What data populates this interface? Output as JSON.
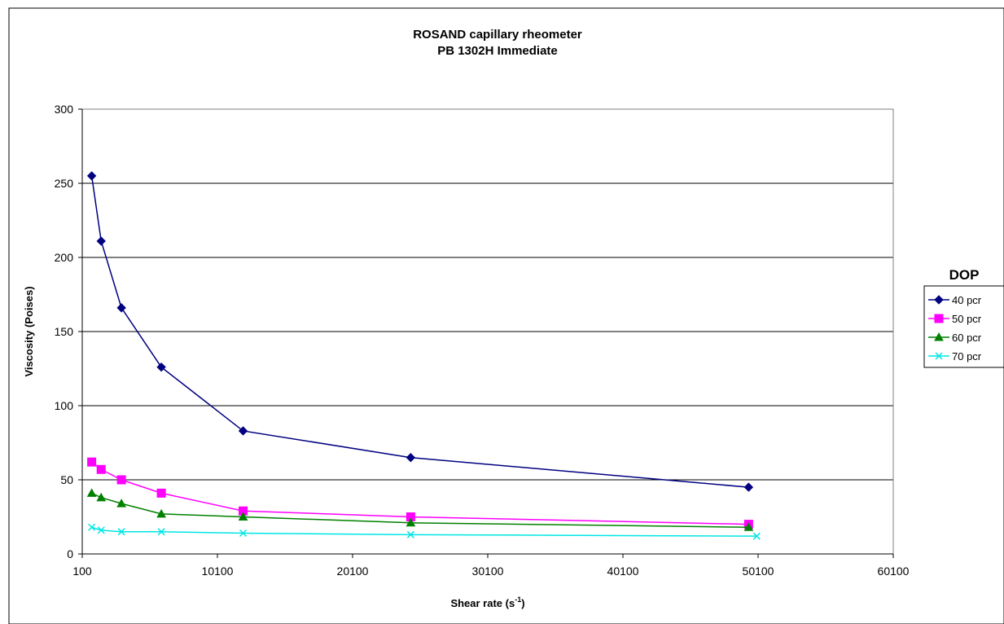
{
  "chart_data": {
    "type": "line",
    "title": "ROSAND capillary rheometer",
    "subtitle": "PB 1302H  Immediate",
    "xlabel": "Shear rate  (s",
    "xlabel_sup": "-1",
    "xlabel_suffix": ")",
    "ylabel": "Viscosity (Poises)",
    "xlim": [
      100,
      60100
    ],
    "ylim": [
      0,
      300
    ],
    "xticks": [
      100,
      10100,
      20100,
      30100,
      40100,
      50100,
      60100
    ],
    "yticks": [
      0,
      50,
      100,
      150,
      200,
      250,
      300
    ],
    "grid": "horizontal",
    "legend_title": "DOP",
    "legend_position": "right",
    "series": [
      {
        "name": "40 pcr",
        "color": "#000080",
        "marker": "diamond",
        "x": [
          800,
          1500,
          3000,
          5950,
          12000,
          24400,
          49400
        ],
        "y": [
          255,
          211,
          166,
          126,
          83,
          65,
          45
        ]
      },
      {
        "name": "50 pcr",
        "color": "#ff00ff",
        "marker": "square",
        "x": [
          800,
          1500,
          3000,
          5950,
          12000,
          24400,
          49400
        ],
        "y": [
          62,
          57,
          50,
          41,
          29,
          25,
          20
        ]
      },
      {
        "name": "60 pcr",
        "color": "#008000",
        "marker": "triangle",
        "x": [
          800,
          1500,
          3000,
          5950,
          12000,
          24400,
          49400
        ],
        "y": [
          41,
          38,
          34,
          27,
          25,
          21,
          18
        ]
      },
      {
        "name": "70 pcr",
        "color": "#00e5e5",
        "marker": "x",
        "x": [
          800,
          1500,
          3000,
          5950,
          12000,
          24400,
          50000
        ],
        "y": [
          18,
          16,
          15,
          15,
          14,
          13,
          12
        ]
      }
    ]
  }
}
